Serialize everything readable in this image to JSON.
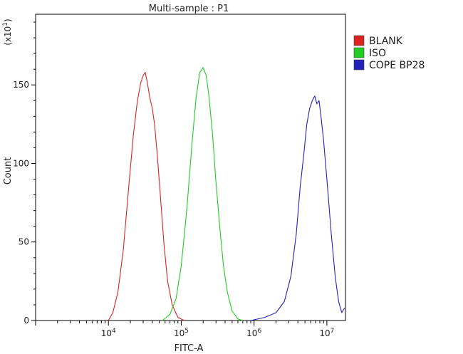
{
  "chart_data": {
    "type": "line",
    "title": "Multi-sample : P1",
    "xlabel": "FITC-A",
    "ylabel": "Count",
    "y_multiplier": "(x10",
    "y_multiplier_exp": "1",
    "y_multiplier_close": ")",
    "x_scale": "log",
    "xlim": [
      1000,
      18000000
    ],
    "ylim": [
      0,
      195
    ],
    "x_ticks": [
      {
        "value": 10000,
        "base": "10",
        "exp": "4"
      },
      {
        "value": 100000,
        "base": "10",
        "exp": "5"
      },
      {
        "value": 1000000,
        "base": "10",
        "exp": "6"
      },
      {
        "value": 10000000,
        "base": "10",
        "exp": "7"
      }
    ],
    "y_ticks": [
      {
        "value": 0,
        "label": "0"
      },
      {
        "value": 50,
        "label": "50"
      },
      {
        "value": 100,
        "label": "100"
      },
      {
        "value": 150,
        "label": "150"
      }
    ],
    "legend_position": "top-right",
    "grid": false,
    "series": [
      {
        "name": "BLANK",
        "color": "#dd2222",
        "points": [
          [
            10000,
            0
          ],
          [
            11500,
            5
          ],
          [
            13500,
            18
          ],
          [
            16000,
            45
          ],
          [
            19000,
            85
          ],
          [
            22000,
            118
          ],
          [
            25000,
            140
          ],
          [
            28000,
            152
          ],
          [
            30000,
            156
          ],
          [
            32000,
            158
          ],
          [
            34000,
            152
          ],
          [
            37000,
            142
          ],
          [
            40000,
            135
          ],
          [
            43000,
            125
          ],
          [
            47000,
            105
          ],
          [
            52000,
            78
          ],
          [
            58000,
            48
          ],
          [
            65000,
            25
          ],
          [
            75000,
            10
          ],
          [
            90000,
            2
          ],
          [
            110000,
            0
          ]
        ]
      },
      {
        "name": "ISO",
        "color": "#22cc22",
        "points": [
          [
            55000,
            0
          ],
          [
            70000,
            4
          ],
          [
            85000,
            14
          ],
          [
            100000,
            35
          ],
          [
            120000,
            72
          ],
          [
            140000,
            112
          ],
          [
            160000,
            142
          ],
          [
            180000,
            158
          ],
          [
            200000,
            161
          ],
          [
            220000,
            156
          ],
          [
            240000,
            143
          ],
          [
            270000,
            118
          ],
          [
            300000,
            88
          ],
          [
            340000,
            58
          ],
          [
            380000,
            35
          ],
          [
            430000,
            18
          ],
          [
            500000,
            6
          ],
          [
            600000,
            1
          ],
          [
            700000,
            0
          ]
        ]
      },
      {
        "name": "COPE BP28",
        "color": "#2222bb",
        "points": [
          [
            900000,
            0
          ],
          [
            1400000,
            2
          ],
          [
            2000000,
            5
          ],
          [
            2600000,
            12
          ],
          [
            3200000,
            28
          ],
          [
            3800000,
            55
          ],
          [
            4300000,
            85
          ],
          [
            4800000,
            105
          ],
          [
            5300000,
            125
          ],
          [
            5800000,
            135
          ],
          [
            6300000,
            140
          ],
          [
            6800000,
            143
          ],
          [
            7300000,
            138
          ],
          [
            7800000,
            140
          ],
          [
            8300000,
            130
          ],
          [
            9000000,
            115
          ],
          [
            10000000,
            90
          ],
          [
            11500000,
            55
          ],
          [
            13000000,
            28
          ],
          [
            14500000,
            12
          ],
          [
            16000000,
            5
          ],
          [
            17500000,
            8
          ]
        ]
      }
    ]
  }
}
